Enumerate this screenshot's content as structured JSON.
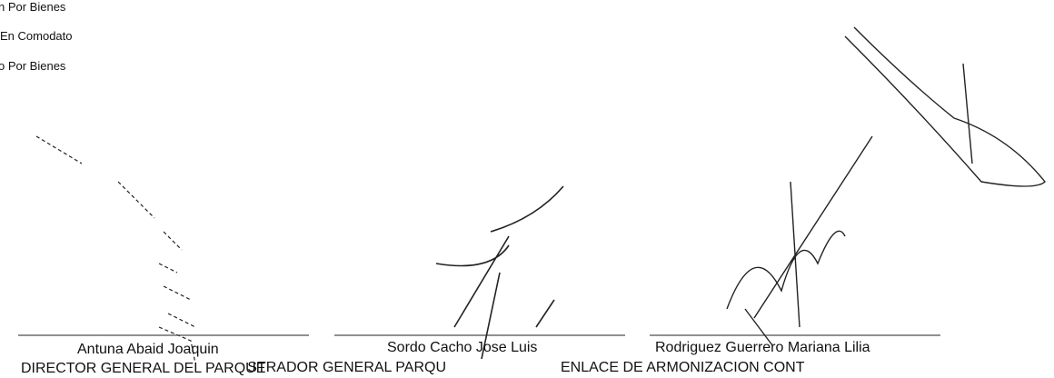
{
  "legend": [
    "n Por Bienes",
    "En Comodato",
    "o Por Bienes"
  ],
  "signatories": [
    {
      "name": "Antuna Abaid Joaquin",
      "role": "DIRECTOR GENERAL DEL PARQUE"
    },
    {
      "name": "Sordo Cacho Jose Luis",
      "role": "ADMINISTRADOR GENERAL PARQU"
    },
    {
      "name": "Rodriguez Guerrero Mariana Lilia",
      "role": "ENLACE DE ARMONIZACION CONT"
    }
  ]
}
